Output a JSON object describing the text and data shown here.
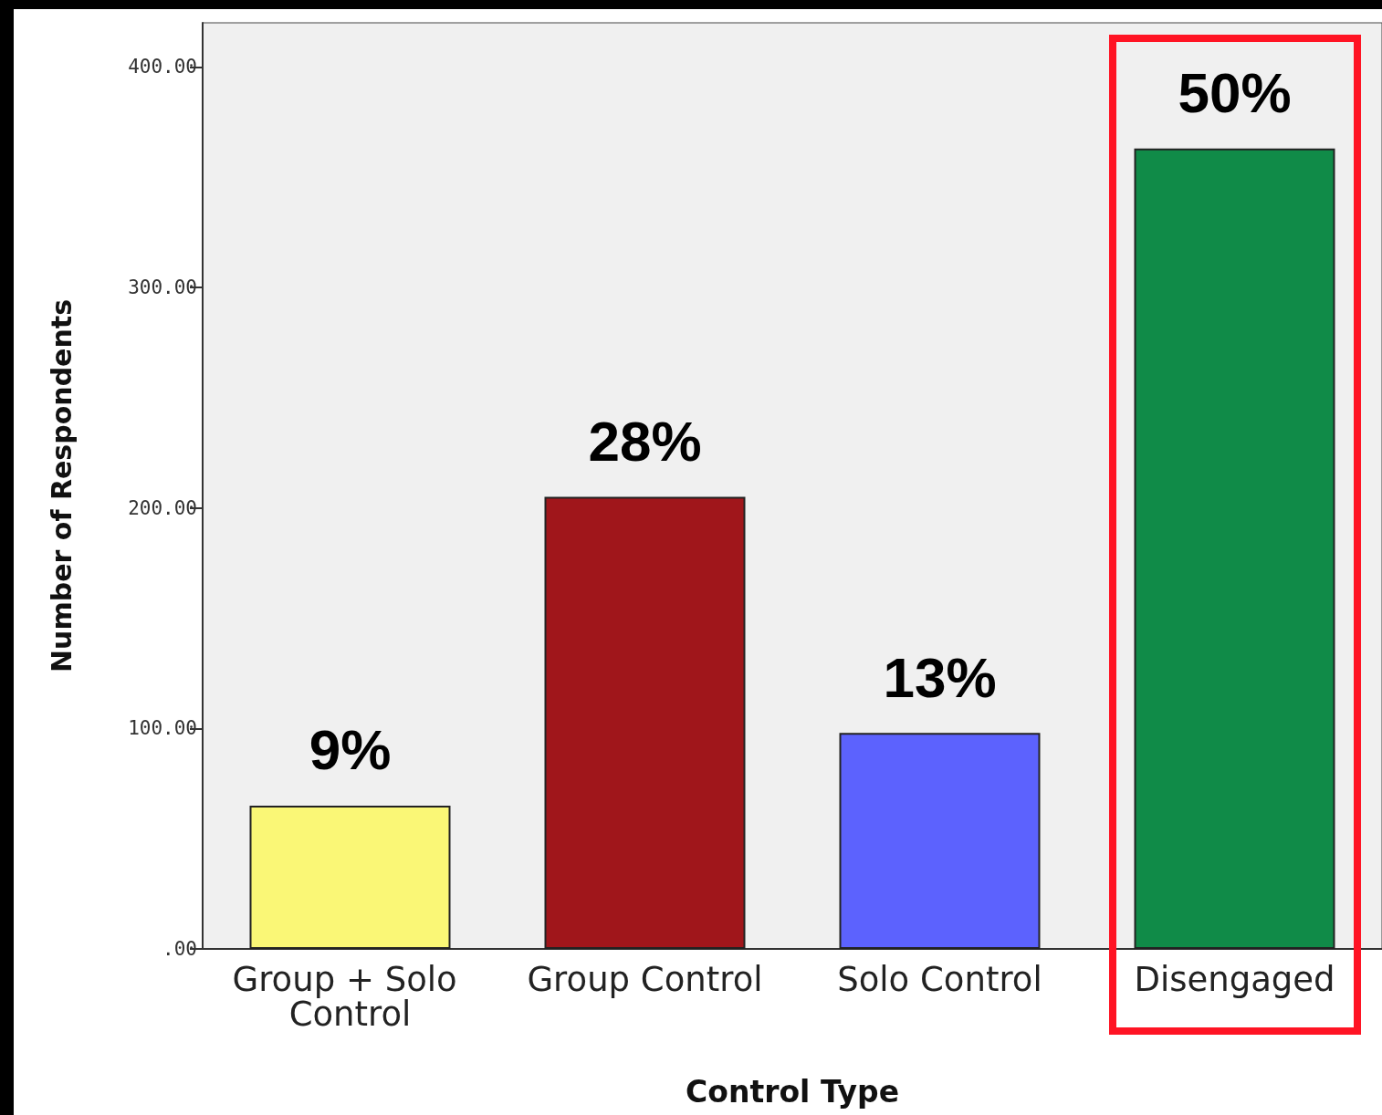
{
  "chart_data": {
    "type": "bar",
    "xlabel": "Control Type",
    "ylabel": "Number of Respondents",
    "categories": [
      "Group + Solo Control",
      "Group Control",
      "Solo Control",
      "Disengaged"
    ],
    "values": [
      65,
      205,
      98,
      363
    ],
    "colors": [
      "#faf776",
      "#a0161b",
      "#5c62fe",
      "#108b48"
    ],
    "annotations": [
      {
        "text": "9%",
        "x": "Group + Solo Control",
        "y": 65
      },
      {
        "text": "28%",
        "x": "Group Control",
        "y": 205
      },
      {
        "text": "13%",
        "x": "Solo Control",
        "y": 98
      },
      {
        "text": "50%",
        "x": "Disengaged",
        "y": 363
      }
    ],
    "ylim": [
      0,
      420
    ],
    "yticks": [
      {
        "value": 0,
        "label": ".00"
      },
      {
        "value": 100,
        "label": "100.00"
      },
      {
        "value": 200,
        "label": "200.00"
      },
      {
        "value": 300,
        "label": "300.00"
      },
      {
        "value": 400,
        "label": "400.00"
      }
    ],
    "grid": false
  }
}
